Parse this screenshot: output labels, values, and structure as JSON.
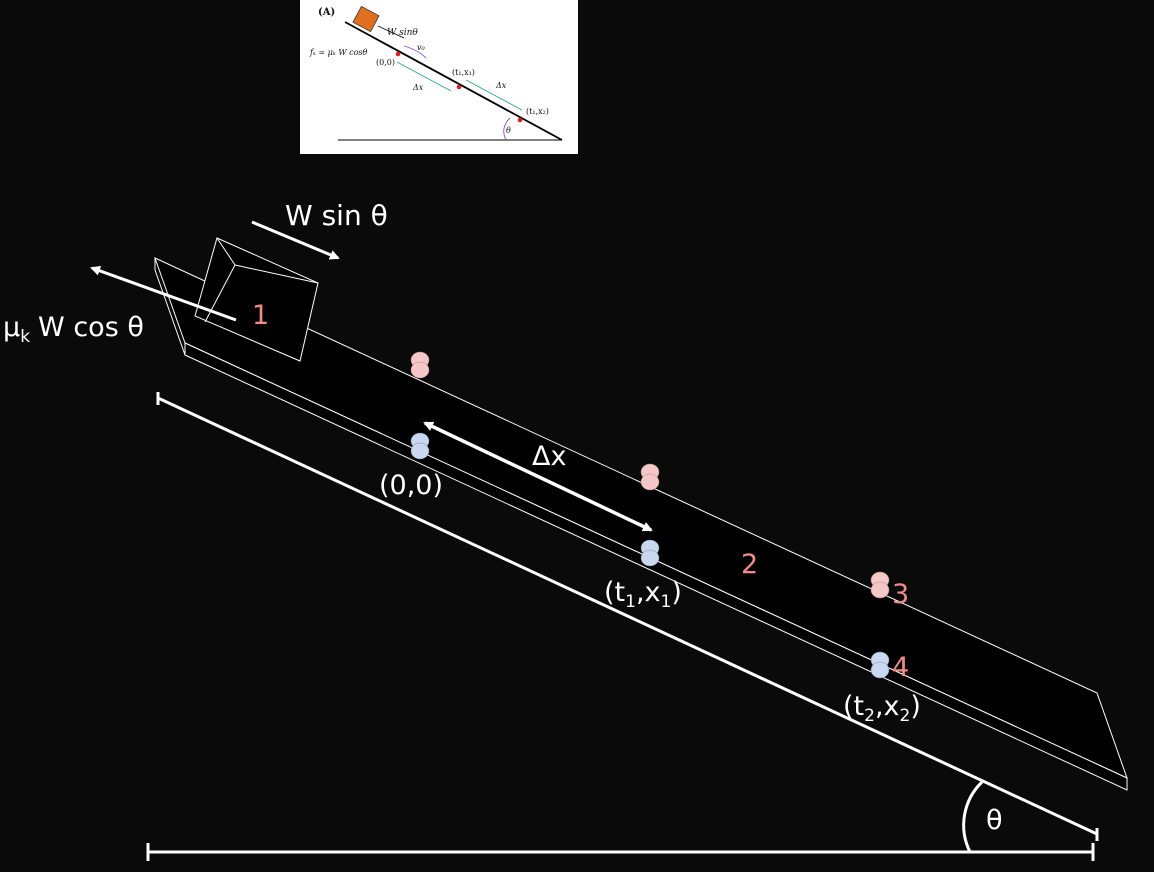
{
  "inset": {
    "panel_label": "(A)",
    "w_sin": "W sinθ",
    "v0": "v₀",
    "fk": "fₖ = μₖ W cosθ",
    "origin": "(0,0)",
    "p1": "(t₁,x₁)",
    "dx1": "Δx",
    "dx2": "Δx",
    "p2": "(t₁,x₂)",
    "theta": "θ",
    "colors": {
      "block": "#e07020",
      "green_arrow": "#2aa87a",
      "purple_arrow": "#8a4bd0",
      "red_dot": "#e02020"
    }
  },
  "main": {
    "w_sin": "W sin θ",
    "mu": "μ",
    "mu_sub": "k",
    "w_cos": "W cos θ",
    "origin": "(0,0)",
    "dx": "Δx",
    "p1_t": "(t",
    "p1_sub1": "1",
    "p1_mid": ",x",
    "p1_sub2": "1",
    "p1_end": ")",
    "p2_t": "(t",
    "p2_sub1": "2",
    "p2_mid": ",x",
    "p2_sub2": "2",
    "p2_end": ")",
    "theta": "θ",
    "num_1": "1",
    "num_2": "2",
    "num_3": "3",
    "num_4": "4",
    "colors": {
      "background": "#0a0a0a",
      "line": "#ffffff",
      "pink_marker": "#f4c8c8",
      "blue_marker": "#c8d8f0",
      "number": "#f08c88"
    }
  }
}
